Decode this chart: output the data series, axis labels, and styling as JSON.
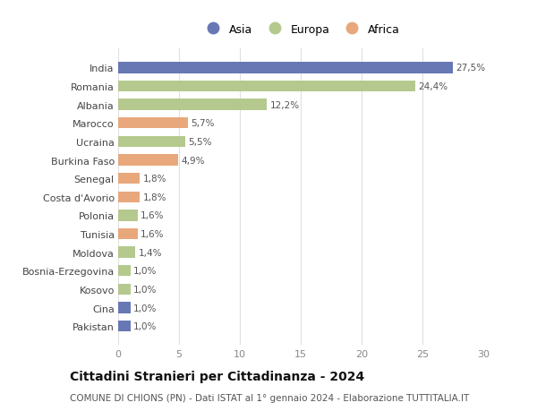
{
  "countries": [
    "India",
    "Romania",
    "Albania",
    "Marocco",
    "Ucraina",
    "Burkina Faso",
    "Senegal",
    "Costa d'Avorio",
    "Polonia",
    "Tunisia",
    "Moldova",
    "Bosnia-Erzegovina",
    "Kosovo",
    "Cina",
    "Pakistan"
  ],
  "values": [
    27.5,
    24.4,
    12.2,
    5.7,
    5.5,
    4.9,
    1.8,
    1.8,
    1.6,
    1.6,
    1.4,
    1.0,
    1.0,
    1.0,
    1.0
  ],
  "labels": [
    "27,5%",
    "24,4%",
    "12,2%",
    "5,7%",
    "5,5%",
    "4,9%",
    "1,8%",
    "1,8%",
    "1,6%",
    "1,6%",
    "1,4%",
    "1,0%",
    "1,0%",
    "1,0%",
    "1,0%"
  ],
  "continents": [
    "Asia",
    "Europa",
    "Europa",
    "Africa",
    "Europa",
    "Africa",
    "Africa",
    "Africa",
    "Europa",
    "Africa",
    "Europa",
    "Europa",
    "Europa",
    "Asia",
    "Asia"
  ],
  "colors": {
    "Asia": "#6878b4",
    "Europa": "#b5c98e",
    "Africa": "#e8a87c"
  },
  "legend": [
    "Asia",
    "Europa",
    "Africa"
  ],
  "legend_colors": [
    "#6878b4",
    "#b5c98e",
    "#e8a87c"
  ],
  "title": "Cittadini Stranieri per Cittadinanza - 2024",
  "subtitle": "COMUNE DI CHIONS (PN) - Dati ISTAT al 1° gennaio 2024 - Elaborazione TUTTITALIA.IT",
  "xlim": [
    0,
    30
  ],
  "xticks": [
    0,
    5,
    10,
    15,
    20,
    25,
    30
  ],
  "background_color": "#ffffff",
  "grid_color": "#e0e0e0",
  "bar_height": 0.6,
  "label_fontsize": 7.5,
  "ytick_fontsize": 8,
  "xtick_fontsize": 8,
  "legend_fontsize": 9,
  "title_fontsize": 10,
  "subtitle_fontsize": 7.5
}
